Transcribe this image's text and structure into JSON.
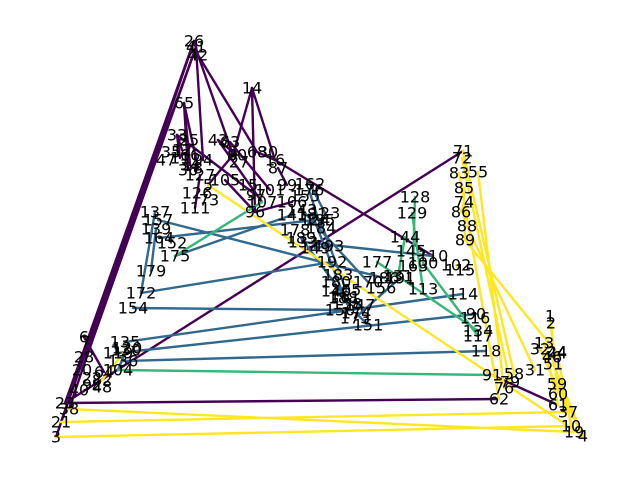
{
  "colors": {
    "purple": "#440154",
    "blue": "#31688e",
    "green": "#35b779",
    "yellow": "#fde725"
  },
  "chart_data": {
    "type": "graph",
    "description_free": true,
    "edges": [
      {
        "from": "26",
        "to": "3",
        "color": "purple"
      },
      {
        "from": "26",
        "to": "21",
        "color": "purple"
      },
      {
        "from": "26",
        "to": "23",
        "color": "purple"
      },
      {
        "from": "26",
        "to": "38",
        "color": "purple"
      },
      {
        "from": "26",
        "to": "42",
        "color": "purple"
      },
      {
        "from": "26",
        "to": "41",
        "color": "purple"
      },
      {
        "from": "41",
        "to": "20",
        "color": "purple"
      },
      {
        "from": "41",
        "to": "28",
        "color": "purple"
      },
      {
        "from": "41",
        "to": "94",
        "color": "purple"
      },
      {
        "from": "42",
        "to": "9",
        "color": "purple"
      },
      {
        "from": "42",
        "to": "68",
        "color": "purple"
      },
      {
        "from": "65",
        "to": "8",
        "color": "purple"
      },
      {
        "from": "65",
        "to": "36",
        "color": "purple"
      },
      {
        "from": "65",
        "to": "34",
        "color": "purple"
      },
      {
        "from": "33",
        "to": "11",
        "color": "purple"
      },
      {
        "from": "33",
        "to": "12",
        "color": "purple"
      },
      {
        "from": "33",
        "to": "97",
        "color": "purple"
      },
      {
        "from": "14",
        "to": "96",
        "color": "purple"
      },
      {
        "from": "14",
        "to": "9",
        "color": "purple"
      },
      {
        "from": "14",
        "to": "16",
        "color": "purple"
      },
      {
        "from": "43",
        "to": "80",
        "color": "purple"
      },
      {
        "from": "43",
        "to": "107",
        "color": "purple"
      },
      {
        "from": "63",
        "to": "101",
        "color": "purple"
      },
      {
        "from": "68",
        "to": "16",
        "color": "purple"
      },
      {
        "from": "16",
        "to": "110",
        "color": "purple"
      },
      {
        "from": "87",
        "to": "99",
        "color": "purple"
      },
      {
        "from": "96",
        "to": "106",
        "color": "purple"
      },
      {
        "from": "105",
        "to": "96",
        "color": "purple"
      },
      {
        "from": "127",
        "to": "111",
        "color": "purple"
      },
      {
        "from": "71",
        "to": "23",
        "color": "purple"
      },
      {
        "from": "9",
        "to": "5",
        "color": "purple"
      },
      {
        "from": "61",
        "to": "91",
        "color": "purple"
      },
      {
        "from": "23",
        "to": "62",
        "color": "purple"
      },
      {
        "from": "6",
        "to": "64",
        "color": "purple"
      },
      {
        "from": "137",
        "to": "172",
        "color": "blue"
      },
      {
        "from": "175",
        "to": "141",
        "color": "blue"
      },
      {
        "from": "154",
        "to": "150",
        "color": "blue"
      },
      {
        "from": "172",
        "to": "192",
        "color": "blue"
      },
      {
        "from": "135",
        "to": "114",
        "color": "blue"
      },
      {
        "from": "136",
        "to": "118",
        "color": "blue"
      },
      {
        "from": "119",
        "to": "90",
        "color": "blue"
      },
      {
        "from": "110",
        "to": "133",
        "color": "blue"
      },
      {
        "from": "195",
        "to": "165",
        "color": "blue"
      },
      {
        "from": "193",
        "to": "149",
        "color": "blue"
      },
      {
        "from": "189",
        "to": "161",
        "color": "blue"
      },
      {
        "from": "176",
        "to": "184",
        "color": "blue"
      },
      {
        "from": "162",
        "to": "123",
        "color": "blue"
      },
      {
        "from": "181",
        "to": "158",
        "color": "blue"
      },
      {
        "from": "164",
        "to": "124",
        "color": "blue"
      },
      {
        "from": "143",
        "to": "170",
        "color": "blue"
      },
      {
        "from": "179",
        "to": "139",
        "color": "blue"
      },
      {
        "from": "157",
        "to": "186",
        "color": "blue"
      },
      {
        "from": "173",
        "to": "191",
        "color": "blue"
      },
      {
        "from": "188",
        "to": "147",
        "color": "blue"
      },
      {
        "from": "174",
        "to": "151",
        "color": "blue"
      },
      {
        "from": "120",
        "to": "104",
        "color": "blue"
      },
      {
        "from": "104",
        "to": "91",
        "color": "green"
      },
      {
        "from": "175",
        "to": "107",
        "color": "green"
      },
      {
        "from": "129",
        "to": "113",
        "color": "green"
      },
      {
        "from": "144",
        "to": "131",
        "color": "green"
      },
      {
        "from": "128",
        "to": "163",
        "color": "green"
      },
      {
        "from": "177",
        "to": "134",
        "color": "green"
      },
      {
        "from": "100",
        "to": "117",
        "color": "green"
      },
      {
        "from": "71",
        "to": "58",
        "color": "yellow"
      },
      {
        "from": "72",
        "to": "79",
        "color": "yellow"
      },
      {
        "from": "55",
        "to": "76",
        "color": "yellow"
      },
      {
        "from": "83",
        "to": "62",
        "color": "yellow"
      },
      {
        "from": "85",
        "to": "89",
        "color": "yellow"
      },
      {
        "from": "74",
        "to": "86",
        "color": "yellow"
      },
      {
        "from": "88",
        "to": "31",
        "color": "yellow"
      },
      {
        "from": "89",
        "to": "44",
        "color": "yellow"
      },
      {
        "from": "1",
        "to": "59",
        "color": "yellow"
      },
      {
        "from": "2",
        "to": "60",
        "color": "yellow"
      },
      {
        "from": "13",
        "to": "61",
        "color": "yellow"
      },
      {
        "from": "32",
        "to": "37",
        "color": "yellow"
      },
      {
        "from": "24",
        "to": "10",
        "color": "yellow"
      },
      {
        "from": "46",
        "to": "19",
        "color": "yellow"
      },
      {
        "from": "51",
        "to": "4",
        "color": "yellow"
      },
      {
        "from": "59",
        "to": "4",
        "color": "yellow"
      },
      {
        "from": "37",
        "to": "21",
        "color": "yellow"
      },
      {
        "from": "10",
        "to": "3",
        "color": "yellow"
      },
      {
        "from": "19",
        "to": "38",
        "color": "yellow"
      },
      {
        "from": "4",
        "to": "5",
        "color": "yellow"
      },
      {
        "from": "102",
        "to": "115",
        "color": "yellow"
      },
      {
        "from": "130",
        "to": "82",
        "color": "yellow"
      },
      {
        "from": "138",
        "to": "7",
        "color": "yellow"
      }
    ]
  },
  "nodes": [
    {
      "label": "26"
    },
    {
      "label": "41"
    },
    {
      "label": "42"
    },
    {
      "label": "65"
    },
    {
      "label": "14"
    },
    {
      "label": "33"
    },
    {
      "label": "43"
    },
    {
      "label": "63"
    },
    {
      "label": "68"
    },
    {
      "label": "16"
    },
    {
      "label": "87"
    },
    {
      "label": "96"
    },
    {
      "label": "105"
    },
    {
      "label": "127"
    },
    {
      "label": "71"
    },
    {
      "label": "72"
    },
    {
      "label": "55"
    },
    {
      "label": "83"
    },
    {
      "label": "85"
    },
    {
      "label": "74"
    },
    {
      "label": "86"
    },
    {
      "label": "88"
    },
    {
      "label": "89"
    },
    {
      "label": "128"
    },
    {
      "label": "129"
    },
    {
      "label": "144"
    },
    {
      "label": "114"
    },
    {
      "label": "116"
    },
    {
      "label": "134"
    },
    {
      "label": "117"
    },
    {
      "label": "118"
    },
    {
      "label": "90"
    },
    {
      "label": "91"
    },
    {
      "label": "58"
    },
    {
      "label": "76"
    },
    {
      "label": "62"
    },
    {
      "label": "31"
    },
    {
      "label": "1"
    },
    {
      "label": "2"
    },
    {
      "label": "13"
    },
    {
      "label": "32"
    },
    {
      "label": "24"
    },
    {
      "label": "46"
    },
    {
      "label": "51"
    },
    {
      "label": "59"
    },
    {
      "label": "60"
    },
    {
      "label": "61"
    },
    {
      "label": "37"
    },
    {
      "label": "10"
    },
    {
      "label": "19"
    },
    {
      "label": "4"
    },
    {
      "label": "6"
    },
    {
      "label": "7"
    },
    {
      "label": "28"
    },
    {
      "label": "20"
    },
    {
      "label": "40"
    },
    {
      "label": "23"
    },
    {
      "label": "38"
    },
    {
      "label": "21"
    },
    {
      "label": "3"
    },
    {
      "label": "135"
    },
    {
      "label": "130"
    },
    {
      "label": "154"
    },
    {
      "label": "172"
    },
    {
      "label": "175"
    },
    {
      "label": "179"
    },
    {
      "label": "137"
    },
    {
      "label": "152"
    },
    {
      "label": "193"
    },
    {
      "label": "192"
    },
    {
      "label": "162"
    },
    {
      "label": "176"
    },
    {
      "label": "181"
    },
    {
      "label": "145"
    },
    {
      "label": "110"
    },
    {
      "label": "102"
    },
    {
      "label": "113"
    },
    {
      "label": "115"
    },
    {
      "label": "151"
    },
    {
      "label": "195"
    },
    {
      "label": "104"
    },
    {
      "label": "9"
    },
    {
      "label": "94"
    },
    {
      "label": "12"
    },
    {
      "label": "11"
    },
    {
      "label": "34"
    },
    {
      "label": "36"
    },
    {
      "label": "8"
    },
    {
      "label": "5"
    },
    {
      "label": "73"
    },
    {
      "label": "27"
    },
    {
      "label": "80"
    },
    {
      "label": "30"
    },
    {
      "label": "15"
    },
    {
      "label": "97"
    },
    {
      "label": "99"
    },
    {
      "label": "107"
    },
    {
      "label": "101"
    },
    {
      "label": "106"
    },
    {
      "label": "126"
    },
    {
      "label": "111"
    },
    {
      "label": "155"
    },
    {
      "label": "141"
    },
    {
      "label": "143"
    },
    {
      "label": "178"
    },
    {
      "label": "189"
    },
    {
      "label": "184"
    },
    {
      "label": "149"
    },
    {
      "label": "180"
    },
    {
      "label": "183"
    },
    {
      "label": "165"
    },
    {
      "label": "136"
    },
    {
      "label": "119"
    },
    {
      "label": "82"
    },
    {
      "label": "64"
    },
    {
      "label": "79"
    },
    {
      "label": "44"
    },
    {
      "label": "22"
    },
    {
      "label": "48"
    },
    {
      "label": "92"
    },
    {
      "label": "156"
    },
    {
      "label": "170"
    },
    {
      "label": "188"
    },
    {
      "label": "174"
    },
    {
      "label": "163"
    },
    {
      "label": "131"
    },
    {
      "label": "100"
    },
    {
      "label": "120"
    },
    {
      "label": "47"
    },
    {
      "label": "66"
    },
    {
      "label": "35"
    },
    {
      "label": "25"
    },
    {
      "label": "133"
    },
    {
      "label": "161"
    },
    {
      "label": "158"
    },
    {
      "label": "124"
    },
    {
      "label": "123"
    },
    {
      "label": "139"
    },
    {
      "label": "186"
    },
    {
      "label": "191"
    },
    {
      "label": "147"
    },
    {
      "label": "177"
    },
    {
      "label": "164"
    },
    {
      "label": "157"
    },
    {
      "label": "173"
    },
    {
      "label": "150"
    },
    {
      "label": "140"
    }
  ]
}
